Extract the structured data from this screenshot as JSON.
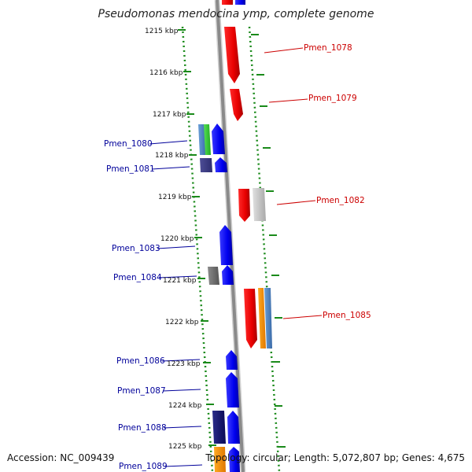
{
  "title": "Pseudomonas mendocina ymp, complete genome",
  "accession": "Accession: NC_009439",
  "footer_info": "Topology: circular; Length: 5,072,807 bp; Genes: 4,675",
  "kbp_ticks": [
    "1215 kbp",
    "1216 kbp",
    "1217 kbp",
    "1218 kbp",
    "1219 kbp",
    "1220 kbp",
    "1221 kbp",
    "1222 kbp",
    "1223 kbp",
    "1224 kbp",
    "1225 kbp"
  ],
  "genes": [
    {
      "label": "Pmen_1078",
      "strand": "forward"
    },
    {
      "label": "Pmen_1079",
      "strand": "forward"
    },
    {
      "label": "Pmen_1080",
      "strand": "reverse"
    },
    {
      "label": "Pmen_1081",
      "strand": "reverse"
    },
    {
      "label": "Pmen_1082",
      "strand": "forward"
    },
    {
      "label": "Pmen_1083",
      "strand": "reverse"
    },
    {
      "label": "Pmen_1084",
      "strand": "reverse"
    },
    {
      "label": "Pmen_1085",
      "strand": "forward"
    },
    {
      "label": "Pmen_1086",
      "strand": "reverse"
    },
    {
      "label": "Pmen_1087",
      "strand": "reverse"
    },
    {
      "label": "Pmen_1088",
      "strand": "reverse"
    },
    {
      "label": "Pmen_1089",
      "strand": "reverse"
    }
  ],
  "colors": {
    "backbone": "#8a8a8a",
    "ruler_dots": "#1a8a1a",
    "forward_gene": "#ee0000",
    "reverse_gene": "#0000ee",
    "forward_label": "#cc0000",
    "reverse_label": "#00009a"
  }
}
